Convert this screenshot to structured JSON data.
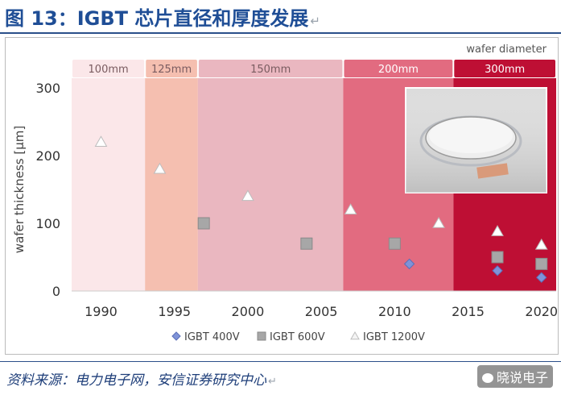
{
  "header": {
    "title": "图 13：IGBT 芯片直径和厚度发展",
    "return_mark": "↵"
  },
  "source": {
    "text": "资料来源：电力电子网，安信证券研究中心",
    "return_mark": "↵"
  },
  "watermark": {
    "text": "晓说电子",
    "icon": "wechat-icon"
  },
  "chart_data": {
    "type": "scatter",
    "title": "",
    "xlabel": "",
    "ylabel": "wafer thickness [µm]",
    "xlim": [
      1988,
      2021
    ],
    "ylim": [
      0,
      300
    ],
    "x_ticks": [
      "1990",
      "1995",
      "2000",
      "2005",
      "2010",
      "2015",
      "2020"
    ],
    "y_ticks": [
      "0",
      "100",
      "200",
      "300"
    ],
    "legend_position": "bottom",
    "band_header": "wafer diameter",
    "bands": [
      {
        "label": "100mm",
        "from": 1988,
        "to": 1993,
        "color": "#fbe7e9"
      },
      {
        "label": "125mm",
        "from": 1993,
        "to": 1996.6,
        "color": "#f5bfb0"
      },
      {
        "label": "150mm",
        "from": 1996.6,
        "to": 2006.5,
        "color": "#eab7c0"
      },
      {
        "label": "200mm",
        "from": 2006.5,
        "to": 2014,
        "color": "#e26b80"
      },
      {
        "label": "300mm",
        "from": 2014,
        "to": 2021,
        "color": "#be0f34"
      }
    ],
    "series": [
      {
        "name": "IGBT 400V",
        "marker": "diamond",
        "color": "#7f93d8",
        "points": [
          [
            2011,
            40
          ],
          [
            2017,
            30
          ],
          [
            2020,
            20
          ]
        ]
      },
      {
        "name": "IGBT 600V",
        "marker": "square",
        "color": "#a7a7a7",
        "points": [
          [
            1997,
            100
          ],
          [
            2004,
            70
          ],
          [
            2010,
            70
          ],
          [
            2017,
            50
          ],
          [
            2020,
            40
          ]
        ]
      },
      {
        "name": "IGBT 1200V",
        "marker": "triangle",
        "color": "#ffffff",
        "points": [
          [
            1990,
            220
          ],
          [
            1994,
            180
          ],
          [
            2000,
            140
          ],
          [
            2007,
            120
          ],
          [
            2013,
            100
          ],
          [
            2017,
            88
          ],
          [
            2020,
            68
          ]
        ]
      }
    ]
  }
}
